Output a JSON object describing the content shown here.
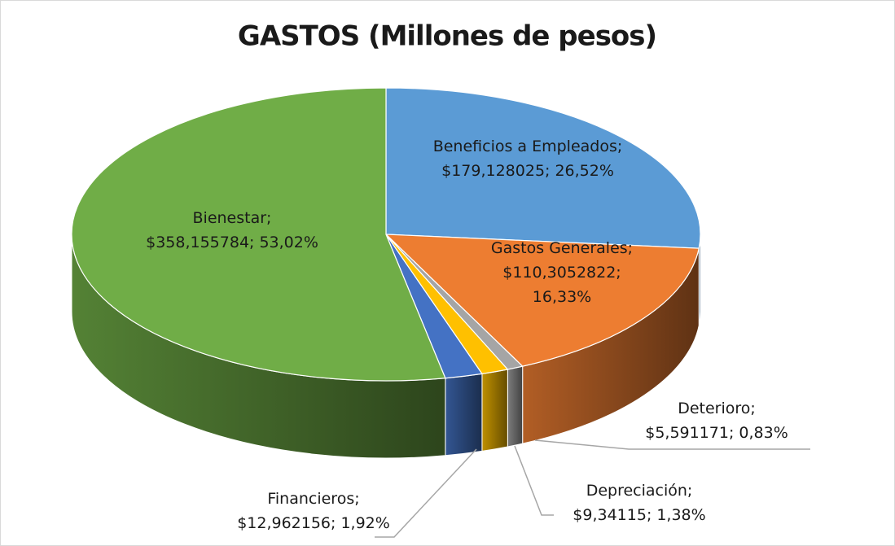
{
  "chart_data": {
    "type": "pie3d",
    "title": "GASTOS (Millones de pesos)",
    "categories": [
      "Beneficios a Empleados;",
      "Gastos Generales;",
      "Deterioro;",
      "Depreciación;",
      "Financieros;",
      "Bienestar;"
    ],
    "values": [
      179.128025,
      110.3052822,
      5.591171,
      9.34115,
      12.962156,
      358.155784
    ],
    "value_labels": [
      "$179,128025;",
      "$110,3052822;",
      "$5,591171;",
      "$9,34115;",
      "$12,962156;",
      "$358,155784;"
    ],
    "percents": [
      26.52,
      16.33,
      0.83,
      1.38,
      1.92,
      53.02
    ],
    "percent_labels": [
      "26,52%",
      "16,33%",
      "0,83%",
      "1,38%",
      "1,92%",
      "53,02%"
    ],
    "colors": [
      "#5b9bd5",
      "#ed7d31",
      "#a5a5a5",
      "#ffc000",
      "#4472c4",
      "#70ad47"
    ]
  }
}
